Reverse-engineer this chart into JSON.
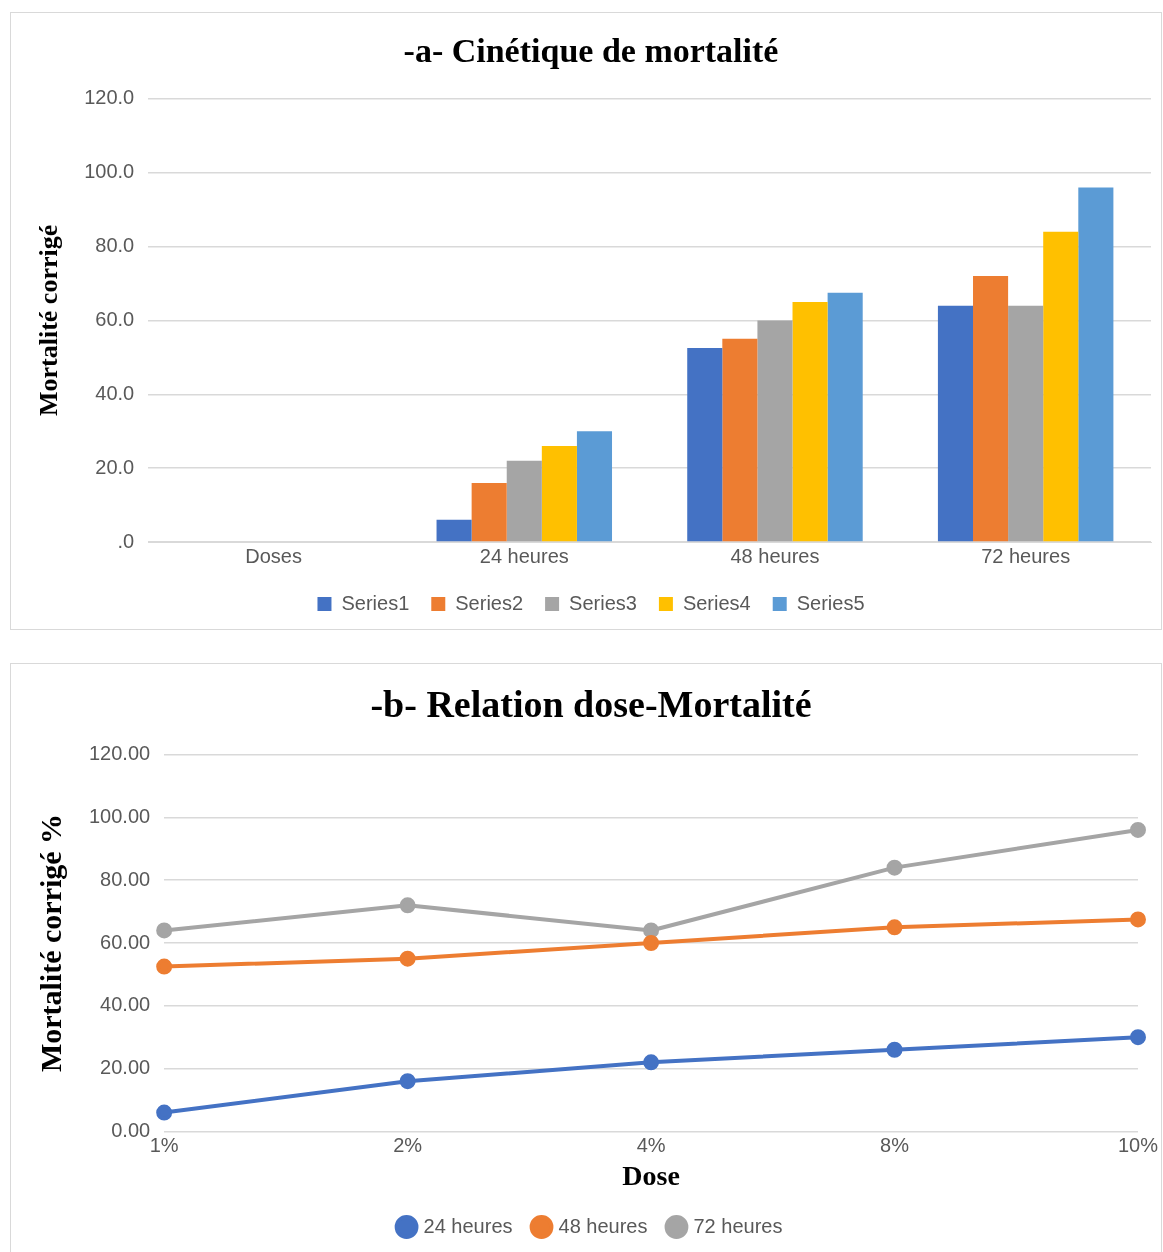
{
  "chart_data": [
    {
      "type": "bar",
      "title": "-a- Cinétique de mortalité",
      "ylabel": "Mortalité corrigé",
      "categories": [
        "Doses",
        "24 heures",
        "48 heures",
        "72 heures"
      ],
      "series": [
        {
          "name": "Series1",
          "color": "#4472c4",
          "values": [
            null,
            6,
            52.5,
            64
          ]
        },
        {
          "name": "Series2",
          "color": "#ed7d31",
          "values": [
            null,
            16,
            55,
            72
          ]
        },
        {
          "name": "Series3",
          "color": "#a5a5a5",
          "values": [
            null,
            22,
            60,
            64
          ]
        },
        {
          "name": "Series4",
          "color": "#ffc000",
          "values": [
            null,
            26,
            65,
            84
          ]
        },
        {
          "name": "Series5",
          "color": "#5b9bd5",
          "values": [
            null,
            30,
            67.5,
            96
          ]
        }
      ],
      "ylim": [
        0,
        120
      ],
      "yticks": [
        {
          "value": 0,
          "label": ".0"
        },
        {
          "value": 20,
          "label": "20.0"
        },
        {
          "value": 40,
          "label": "40.0"
        },
        {
          "value": 60,
          "label": "60.0"
        },
        {
          "value": 80,
          "label": "80.0"
        },
        {
          "value": 100,
          "label": "100.0"
        },
        {
          "value": 120,
          "label": "120.0"
        }
      ],
      "grid": "y",
      "legend": "bottom"
    },
    {
      "type": "line",
      "title": "-b- Relation dose-Mortalité",
      "xlabel": "Dose",
      "ylabel": "Mortalité corrigé %",
      "categories": [
        "1%",
        "2%",
        "4%",
        "8%",
        "10%"
      ],
      "series": [
        {
          "name": "24 heures",
          "color": "#4472c4",
          "values": [
            6,
            16,
            22,
            26,
            30
          ]
        },
        {
          "name": "48 heures",
          "color": "#ed7d31",
          "values": [
            52.5,
            55,
            60,
            65,
            67.5
          ]
        },
        {
          "name": "72 heures",
          "color": "#a5a5a5",
          "values": [
            64,
            72,
            64,
            84,
            96
          ]
        }
      ],
      "ylim": [
        0,
        120
      ],
      "yticks": [
        {
          "value": 0,
          "label": "0.00"
        },
        {
          "value": 20,
          "label": "20.00"
        },
        {
          "value": 40,
          "label": "40.00"
        },
        {
          "value": 60,
          "label": "60.00"
        },
        {
          "value": 80,
          "label": "80.00"
        },
        {
          "value": 100,
          "label": "100.00"
        },
        {
          "value": 120,
          "label": "120.00"
        }
      ],
      "grid": "y",
      "legend": "bottom",
      "marker": "circle",
      "line_style": "solid"
    }
  ]
}
